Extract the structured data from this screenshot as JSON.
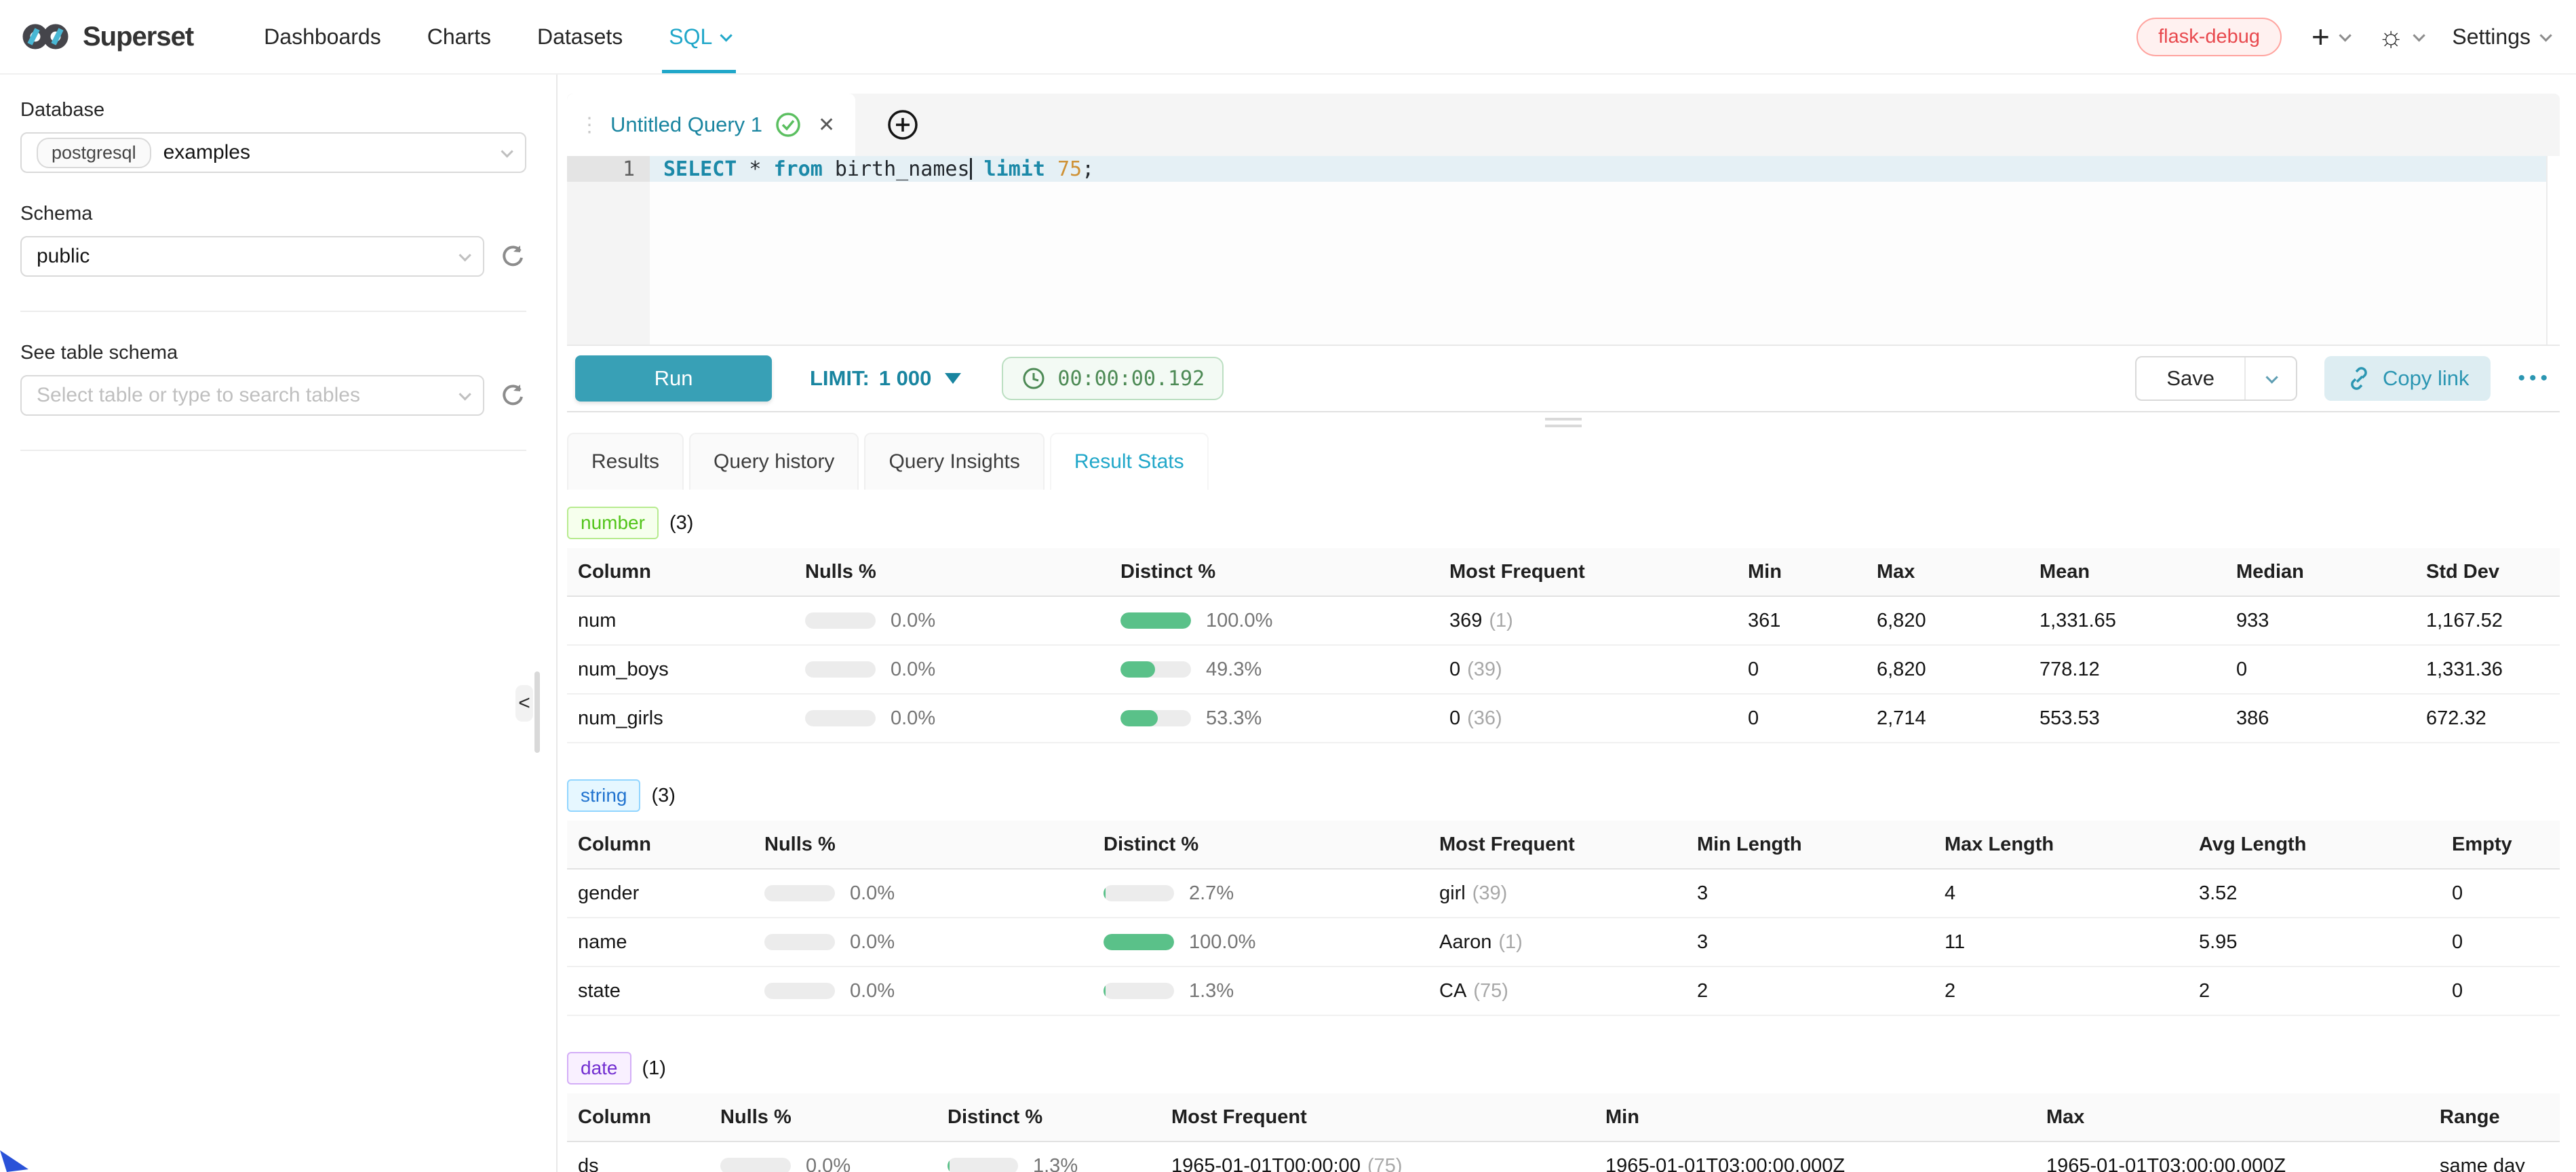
{
  "colors": {
    "primary": "#20a7c9",
    "run_button": "#38a0b6",
    "sql_keyword": "#1b89a8",
    "sql_number": "#cf9236",
    "success_bar": "#5ac189",
    "timer_green": "#4d8a55",
    "env_badge_red": "#e8484d",
    "badge_number_green": "#52c41a",
    "badge_string_blue": "#2173cf",
    "badge_date_purple": "#722ed1"
  },
  "navbar": {
    "brand": "Superset",
    "menu": [
      {
        "label": "Dashboards"
      },
      {
        "label": "Charts"
      },
      {
        "label": "Datasets"
      },
      {
        "label": "SQL"
      }
    ],
    "env_badge": "flask-debug",
    "new_label": "+",
    "settings_label": "Settings"
  },
  "sidebar": {
    "database_label": "Database",
    "database_engine": "postgresql",
    "database_value": "examples",
    "schema_label": "Schema",
    "schema_value": "public",
    "table_label": "See table schema",
    "table_placeholder": "Select table or type to search tables",
    "collapse_glyph": "<"
  },
  "editor": {
    "tab_title": "Untitled Query 1",
    "line_number": "1",
    "sql": {
      "kw_select": "SELECT",
      "star": " * ",
      "kw_from": "from",
      "table": " birth_names",
      "kw_limit": " limit",
      "value": " 75",
      "semicolon": ";"
    },
    "toolbar": {
      "run": "Run",
      "limit_label": "LIMIT:",
      "limit_value": "1 000",
      "timer": "00:00:00.192",
      "save": "Save",
      "copy_link": "Copy link",
      "more": "•••"
    }
  },
  "results": {
    "tabs": [
      {
        "label": "Results"
      },
      {
        "label": "Query history"
      },
      {
        "label": "Query Insights"
      },
      {
        "label": "Result Stats"
      }
    ]
  },
  "stats": {
    "number": {
      "badge": "number",
      "count": "(3)",
      "headers": [
        "Column",
        "Nulls %",
        "Distinct %",
        "Most Frequent",
        "Min",
        "Max",
        "Mean",
        "Median",
        "Std Dev"
      ],
      "rows": [
        {
          "column": "num",
          "nulls": "0.0%",
          "nulls_pct": 0,
          "distinct": "100.0%",
          "distinct_pct": 100,
          "mf": "369",
          "mf_count": "(1)",
          "stats": [
            "361",
            "6,820",
            "1,331.65",
            "933",
            "1,167.52"
          ]
        },
        {
          "column": "num_boys",
          "nulls": "0.0%",
          "nulls_pct": 0,
          "distinct": "49.3%",
          "distinct_pct": 49.3,
          "mf": "0",
          "mf_count": "(39)",
          "stats": [
            "0",
            "6,820",
            "778.12",
            "0",
            "1,331.36"
          ]
        },
        {
          "column": "num_girls",
          "nulls": "0.0%",
          "nulls_pct": 0,
          "distinct": "53.3%",
          "distinct_pct": 53.3,
          "mf": "0",
          "mf_count": "(36)",
          "stats": [
            "0",
            "2,714",
            "553.53",
            "386",
            "672.32"
          ]
        }
      ]
    },
    "string": {
      "badge": "string",
      "count": "(3)",
      "headers": [
        "Column",
        "Nulls %",
        "Distinct %",
        "Most Frequent",
        "Min Length",
        "Max Length",
        "Avg Length",
        "Empty"
      ],
      "rows": [
        {
          "column": "gender",
          "nulls": "0.0%",
          "nulls_pct": 0,
          "distinct": "2.7%",
          "distinct_pct": 2.7,
          "mf": "girl",
          "mf_count": "(39)",
          "stats": [
            "3",
            "4",
            "3.52",
            "0"
          ]
        },
        {
          "column": "name",
          "nulls": "0.0%",
          "nulls_pct": 0,
          "distinct": "100.0%",
          "distinct_pct": 100,
          "mf": "Aaron",
          "mf_count": "(1)",
          "stats": [
            "3",
            "11",
            "5.95",
            "0"
          ]
        },
        {
          "column": "state",
          "nulls": "0.0%",
          "nulls_pct": 0,
          "distinct": "1.3%",
          "distinct_pct": 1.3,
          "mf": "CA",
          "mf_count": "(75)",
          "stats": [
            "2",
            "2",
            "2",
            "0"
          ]
        }
      ]
    },
    "date": {
      "badge": "date",
      "count": "(1)",
      "headers": [
        "Column",
        "Nulls %",
        "Distinct %",
        "Most Frequent",
        "Min",
        "Max",
        "Range"
      ],
      "rows": [
        {
          "column": "ds",
          "nulls": "0.0%",
          "nulls_pct": 0,
          "distinct": "1.3%",
          "distinct_pct": 1.3,
          "mf": "1965-01-01T00:00:00",
          "mf_count": "(75)",
          "stats": [
            "1965-01-01T03:00:00.000Z",
            "1965-01-01T03:00:00.000Z",
            "same day"
          ]
        }
      ]
    }
  }
}
